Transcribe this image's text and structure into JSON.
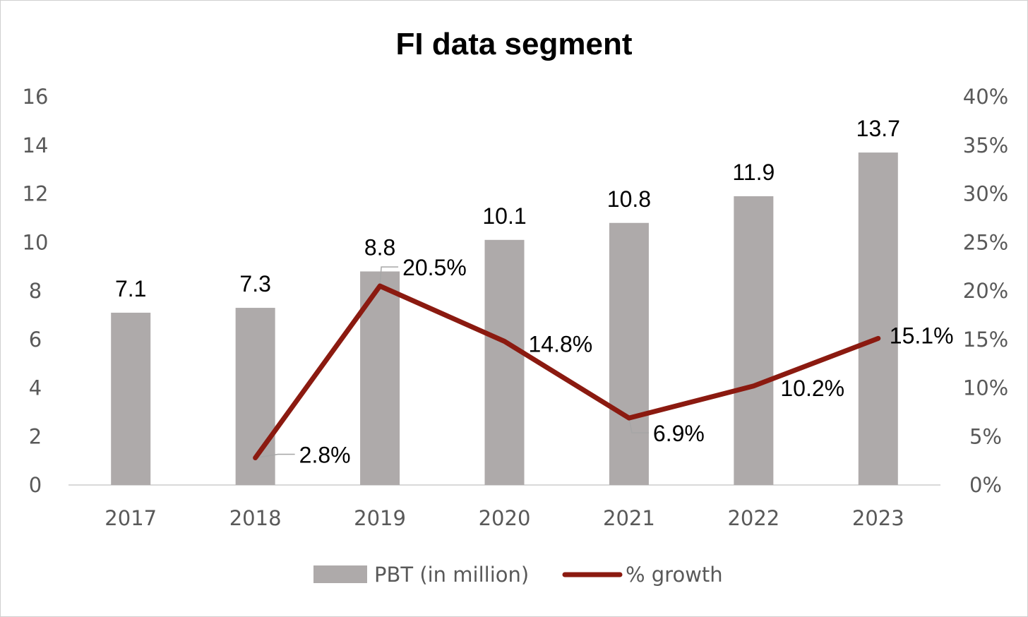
{
  "chart_data": {
    "type": "bar",
    "title": "FI data segment",
    "categories": [
      "2017",
      "2018",
      "2019",
      "2020",
      "2021",
      "2022",
      "2023"
    ],
    "series": [
      {
        "name": "PBT (in million)",
        "type": "bar",
        "axis": "left",
        "values": [
          7.1,
          7.3,
          8.8,
          10.1,
          10.8,
          11.9,
          13.7
        ],
        "labels": [
          "7.1",
          "7.3",
          "8.8",
          "10.1",
          "10.8",
          "11.9",
          "13.7"
        ],
        "color": "#aeaaaa"
      },
      {
        "name": "% growth",
        "type": "line",
        "axis": "right",
        "values": [
          null,
          2.8,
          20.5,
          14.8,
          6.9,
          10.2,
          15.1
        ],
        "labels": [
          null,
          "2.8%",
          "20.5%",
          "14.8%",
          "6.9%",
          "10.2%",
          "15.1%"
        ],
        "color": "#8b1a10"
      }
    ],
    "y_left": {
      "min": 0,
      "max": 16,
      "step": 2,
      "ticks": [
        "0",
        "2",
        "4",
        "6",
        "8",
        "10",
        "12",
        "14",
        "16"
      ]
    },
    "y_right": {
      "min": 0,
      "max": 40,
      "step": 5,
      "ticks": [
        "0%",
        "5%",
        "10%",
        "15%",
        "20%",
        "25%",
        "30%",
        "35%",
        "40%"
      ]
    },
    "grid": false,
    "legend_position": "bottom"
  }
}
